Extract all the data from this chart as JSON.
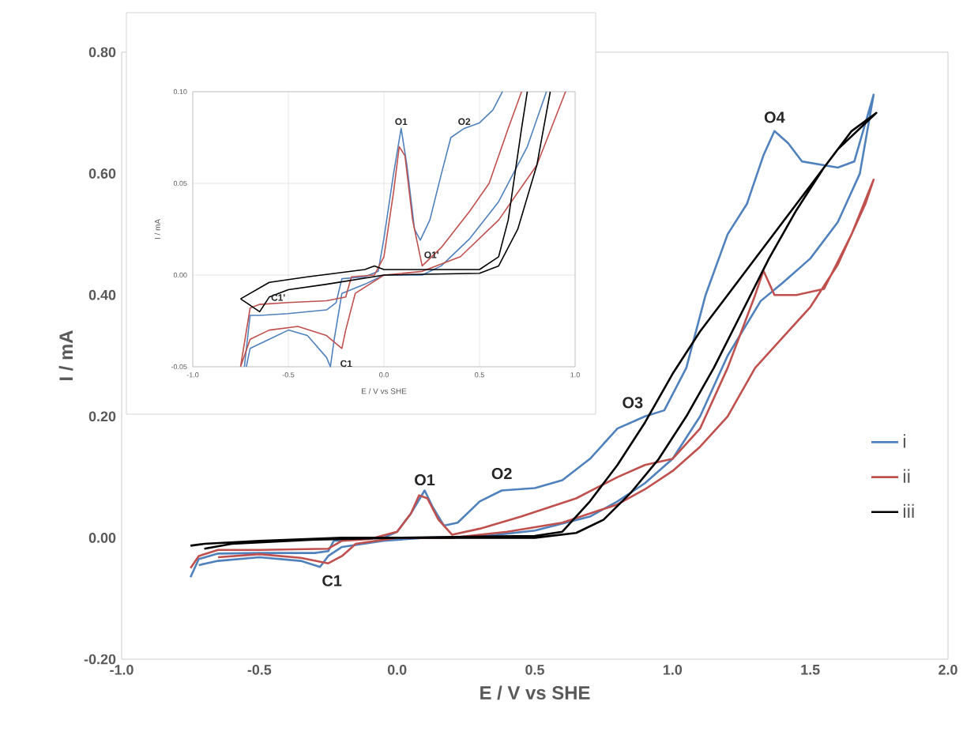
{
  "chart_data": [
    {
      "type": "line",
      "xlabel": "E / V vs SHE",
      "ylabel": "I / mA",
      "xlim": [
        -1,
        2
      ],
      "ylim": [
        -0.2,
        0.8
      ],
      "xticks": [
        {
          "value": -1,
          "label": "-1.0"
        },
        {
          "value": -0.5,
          "label": "-0.5"
        },
        {
          "value": 0,
          "label": "0.0"
        },
        {
          "value": 0.5,
          "label": "0.5"
        },
        {
          "value": 1,
          "label": "1.0"
        },
        {
          "value": 1.5,
          "label": "1.5"
        },
        {
          "value": 2,
          "label": "2.0"
        }
      ],
      "yticks": [
        {
          "value": -0.2,
          "label": "-0.20"
        },
        {
          "value": 0,
          "label": "0.00"
        },
        {
          "value": 0.2,
          "label": "0.20"
        },
        {
          "value": 0.4,
          "label": "0.40"
        },
        {
          "value": 0.6,
          "label": "0.60"
        },
        {
          "value": 0.8,
          "label": "0.80"
        }
      ],
      "legend": "right",
      "series": [
        {
          "name": "i",
          "color": "#4f81bd",
          "x": [
            -0.75,
            -0.72,
            -0.65,
            -0.5,
            -0.3,
            -0.25,
            -0.23,
            -0.15,
            -0.05,
            0.0,
            0.05,
            0.1,
            0.13,
            0.17,
            0.22,
            0.3,
            0.38,
            0.5,
            0.6,
            0.7,
            0.8,
            0.9,
            0.97,
            1.05,
            1.12,
            1.2,
            1.27,
            1.33,
            1.37,
            1.42,
            1.47,
            1.6,
            1.66,
            1.73,
            1.68,
            1.6,
            1.5,
            1.4,
            1.32,
            1.2,
            1.1,
            1.0,
            0.9,
            0.8,
            0.7,
            0.5,
            0.3,
            0.1,
            -0.05,
            -0.2,
            -0.25,
            -0.28,
            -0.35,
            -0.5,
            -0.65,
            -0.72
          ],
          "values": [
            -0.065,
            -0.035,
            -0.026,
            -0.025,
            -0.025,
            -0.022,
            -0.005,
            -0.002,
            0.0,
            0.01,
            0.04,
            0.078,
            0.05,
            0.02,
            0.025,
            0.06,
            0.078,
            0.082,
            0.095,
            0.13,
            0.18,
            0.2,
            0.21,
            0.28,
            0.4,
            0.5,
            0.55,
            0.63,
            0.67,
            0.65,
            0.62,
            0.61,
            0.62,
            0.73,
            0.6,
            0.52,
            0.46,
            0.42,
            0.39,
            0.3,
            0.2,
            0.13,
            0.09,
            0.06,
            0.035,
            0.012,
            0.002,
            0.0,
            -0.005,
            -0.015,
            -0.03,
            -0.048,
            -0.038,
            -0.032,
            -0.038,
            -0.045
          ]
        },
        {
          "name": "ii",
          "color": "#c0504d",
          "x": [
            -0.75,
            -0.72,
            -0.65,
            -0.5,
            -0.25,
            -0.2,
            -0.1,
            0.0,
            0.05,
            0.08,
            0.11,
            0.15,
            0.2,
            0.3,
            0.45,
            0.55,
            0.65,
            0.8,
            0.9,
            1.0,
            1.1,
            1.2,
            1.3,
            1.33,
            1.37,
            1.45,
            1.55,
            1.65,
            1.73,
            1.7,
            1.6,
            1.5,
            1.4,
            1.3,
            1.2,
            1.1,
            1.0,
            0.9,
            0.8,
            0.6,
            0.4,
            0.2,
            0.0,
            -0.15,
            -0.2,
            -0.25,
            -0.35,
            -0.5,
            -0.65
          ],
          "values": [
            -0.05,
            -0.03,
            -0.02,
            -0.02,
            -0.018,
            -0.005,
            -0.002,
            0.01,
            0.04,
            0.07,
            0.065,
            0.03,
            0.005,
            0.015,
            0.035,
            0.05,
            0.065,
            0.1,
            0.12,
            0.13,
            0.18,
            0.28,
            0.4,
            0.44,
            0.4,
            0.4,
            0.41,
            0.5,
            0.59,
            0.55,
            0.45,
            0.38,
            0.33,
            0.28,
            0.2,
            0.15,
            0.11,
            0.08,
            0.055,
            0.025,
            0.01,
            0.0,
            0.0,
            -0.01,
            -0.03,
            -0.042,
            -0.033,
            -0.027,
            -0.032
          ]
        },
        {
          "name": "iii",
          "color": "#000000",
          "x": [
            -0.75,
            -0.7,
            -0.5,
            -0.2,
            0.0,
            0.3,
            0.5,
            0.6,
            0.7,
            0.8,
            0.9,
            1.0,
            1.1,
            1.2,
            1.3,
            1.4,
            1.5,
            1.6,
            1.74,
            1.65,
            1.55,
            1.45,
            1.35,
            1.25,
            1.15,
            1.05,
            0.95,
            0.85,
            0.75,
            0.65,
            0.5,
            0.2,
            0.0,
            -0.3,
            -0.6,
            -0.7
          ],
          "values": [
            -0.013,
            -0.01,
            -0.005,
            0.0,
            0.0,
            0.002,
            0.003,
            0.01,
            0.06,
            0.12,
            0.19,
            0.27,
            0.34,
            0.4,
            0.46,
            0.52,
            0.58,
            0.64,
            0.7,
            0.67,
            0.61,
            0.54,
            0.46,
            0.37,
            0.28,
            0.2,
            0.13,
            0.075,
            0.03,
            0.008,
            0.0,
            0.0,
            0.0,
            -0.003,
            -0.01,
            -0.018
          ]
        }
      ],
      "annotations": [
        {
          "text": "O1",
          "x": 0.1,
          "y": 0.078
        },
        {
          "text": "O2",
          "x": 0.38,
          "y": 0.078
        },
        {
          "text": "O3",
          "x": 0.9,
          "y": 0.2
        },
        {
          "text": "O4",
          "x": 1.37,
          "y": 0.67
        },
        {
          "text": "C1",
          "x": -0.28,
          "y": -0.048
        }
      ]
    },
    {
      "type": "line",
      "xlabel": "E / V vs SHE",
      "ylabel": "I / mA",
      "xlim": [
        -1,
        1
      ],
      "ylim": [
        -0.05,
        0.1
      ],
      "grid": true,
      "xticks": [
        {
          "value": -1,
          "label": "-1.0"
        },
        {
          "value": -0.5,
          "label": "-0.5"
        },
        {
          "value": 0,
          "label": "0.0"
        },
        {
          "value": 0.5,
          "label": "0.5"
        },
        {
          "value": 1,
          "label": "1.0"
        }
      ],
      "yticks": [
        {
          "value": -0.05,
          "label": "-0.05"
        },
        {
          "value": 0,
          "label": "0.00"
        },
        {
          "value": 0.05,
          "label": "0.05"
        },
        {
          "value": 0.1,
          "label": "0.10"
        }
      ],
      "series": [
        {
          "color": "#4f81bd",
          "x": [
            -0.73,
            -0.7,
            -0.65,
            -0.5,
            -0.3,
            -0.25,
            -0.22,
            -0.1,
            -0.03,
            0.0,
            0.05,
            0.09,
            0.12,
            0.16,
            0.19,
            0.24,
            0.3,
            0.35,
            0.42,
            0.5,
            0.57,
            0.62,
            0.74,
            0.85,
            0.75,
            0.6,
            0.45,
            0.3,
            0.2,
            0.0,
            -0.1,
            -0.22,
            -0.26,
            -0.28,
            -0.3,
            -0.4,
            -0.5,
            -0.6,
            -0.7,
            -0.72
          ],
          "values": [
            -0.05,
            -0.022,
            -0.022,
            -0.021,
            -0.019,
            -0.015,
            -0.002,
            -0.001,
            0.002,
            0.02,
            0.055,
            0.08,
            0.06,
            0.025,
            0.019,
            0.03,
            0.055,
            0.075,
            0.08,
            0.083,
            0.09,
            0.1,
            null,
            0.1,
            0.07,
            0.04,
            0.02,
            0.005,
            0.0,
            0.0,
            -0.005,
            -0.01,
            -0.035,
            -0.05,
            -0.045,
            -0.033,
            -0.03,
            -0.035,
            -0.04,
            -0.05
          ]
        },
        {
          "color": "#c0504d",
          "x": [
            -0.75,
            -0.7,
            -0.65,
            -0.5,
            -0.3,
            -0.2,
            -0.17,
            -0.05,
            0.0,
            0.05,
            0.08,
            0.11,
            0.15,
            0.2,
            0.3,
            0.45,
            0.55,
            0.65,
            0.72,
            0.84,
            0.95,
            0.8,
            0.6,
            0.4,
            0.2,
            0.0,
            -0.15,
            -0.2,
            -0.22,
            -0.3,
            -0.45,
            -0.6,
            -0.7,
            -0.75
          ],
          "values": [
            -0.05,
            -0.018,
            -0.016,
            -0.015,
            -0.014,
            -0.012,
            -0.001,
            0.0,
            0.01,
            0.045,
            0.07,
            0.065,
            0.03,
            0.005,
            0.015,
            0.035,
            0.05,
            0.08,
            0.1,
            null,
            0.1,
            0.06,
            0.03,
            0.01,
            0.002,
            0.0,
            -0.01,
            -0.03,
            -0.04,
            -0.033,
            -0.028,
            -0.03,
            -0.035,
            -0.05
          ]
        },
        {
          "color": "#000000",
          "x": [
            -0.75,
            -0.7,
            -0.6,
            -0.4,
            -0.1,
            -0.05,
            0.0,
            0.2,
            0.5,
            0.6,
            0.65,
            0.72,
            0.75,
            0.81,
            0.87,
            0.8,
            0.7,
            0.6,
            0.5,
            0.0,
            -0.3,
            -0.5,
            -0.6,
            -0.65,
            -0.72,
            -0.75
          ],
          "values": [
            -0.013,
            -0.01,
            -0.004,
            -0.001,
            0.003,
            0.005,
            0.003,
            0.003,
            0.003,
            0.01,
            0.03,
            0.08,
            0.1,
            null,
            0.1,
            0.06,
            0.025,
            0.005,
            0.001,
            0.0,
            -0.005,
            -0.008,
            -0.012,
            -0.02,
            -0.015,
            -0.013
          ]
        }
      ],
      "annotations": [
        {
          "text": "O1",
          "x": 0.09,
          "y": 0.08
        },
        {
          "text": "O2",
          "x": 0.42,
          "y": 0.08
        },
        {
          "text": "O1'",
          "x": 0.2,
          "y": 0.003
        },
        {
          "text": "C1'",
          "x": -0.65,
          "y": -0.02
        },
        {
          "text": "C1",
          "x": -0.28,
          "y": -0.05
        }
      ]
    }
  ]
}
